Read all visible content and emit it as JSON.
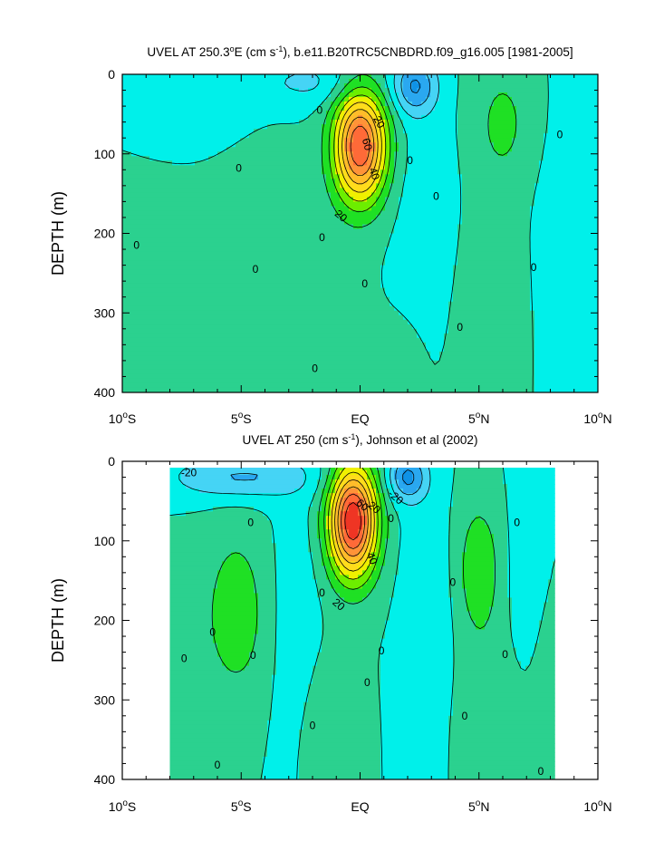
{
  "chart_data": [
    {
      "type": "contour",
      "title_parts": {
        "pre": "UVEL AT 250.3",
        "deg": "o",
        "mid": "E (cm s",
        "exp": "-1",
        "post": "), b.e11.B20TRC5CNBDRD.f09_g16.005 [1981-2005]"
      },
      "ylabel": "DEPTH (m)",
      "xlim": [
        -10,
        10
      ],
      "ylim": [
        400,
        0
      ],
      "yticks": [
        {
          "v": 0,
          "label": "0"
        },
        {
          "v": 100,
          "label": "100"
        },
        {
          "v": 200,
          "label": "200"
        },
        {
          "v": 300,
          "label": "300"
        },
        {
          "v": 400,
          "label": "400"
        }
      ],
      "xticks": [
        {
          "v": -10,
          "num": "10",
          "deg": "o",
          "hem": "S"
        },
        {
          "v": -5,
          "num": "5",
          "deg": "o",
          "hem": "S"
        },
        {
          "v": 0,
          "num": "EQ",
          "deg": "",
          "hem": ""
        },
        {
          "v": 5,
          "num": "5",
          "deg": "o",
          "hem": "N"
        },
        {
          "v": 10,
          "num": "10",
          "deg": "o",
          "hem": "N"
        }
      ],
      "data_xrange": [
        -10,
        10
      ],
      "data_depth_top": 0,
      "data_depth_bottom": 400,
      "contour_interval": 10,
      "features": [
        {
          "kind": "jet",
          "x": 0,
          "depth": 90,
          "peak": 80,
          "hw": 1.1,
          "hd": 70
        },
        {
          "kind": "jet",
          "x": -9,
          "depth": 320,
          "peak": 6,
          "hw": 4,
          "hd": 160
        },
        {
          "kind": "jet",
          "x": -4,
          "depth": 230,
          "peak": 8,
          "hw": 2.0,
          "hd": 130
        },
        {
          "kind": "jet",
          "x": 6,
          "depth": 60,
          "peak": 12,
          "hw": 1.3,
          "hd": 80
        },
        {
          "kind": "jet",
          "x": 5.5,
          "depth": 300,
          "peak": 6,
          "hw": 1.6,
          "hd": 150
        },
        {
          "kind": "jet",
          "x": -1.5,
          "depth": 320,
          "peak": 6,
          "hw": 1.5,
          "hd": 100
        },
        {
          "kind": "jet",
          "x": 1.8,
          "depth": 360,
          "peak": 4,
          "hw": 1.0,
          "hd": 60
        },
        {
          "kind": "jet",
          "x": 2.3,
          "depth": 15,
          "peak": -30,
          "hw": 0.9,
          "hd": 35
        },
        {
          "kind": "jet",
          "x": -2,
          "depth": 10,
          "peak": -12,
          "hw": 2.5,
          "hd": 30
        },
        {
          "kind": "jet",
          "x": 2.8,
          "depth": 180,
          "peak": -6,
          "hw": 1.3,
          "hd": 150
        },
        {
          "kind": "jet",
          "x": 8.5,
          "depth": 250,
          "peak": -5,
          "hw": 1.3,
          "hd": 200
        },
        {
          "kind": "jet",
          "x": -7,
          "depth": 40,
          "peak": -5,
          "hw": 3,
          "hd": 60
        }
      ],
      "labels": [
        {
          "x": 0.8,
          "depth": 60,
          "text": "20",
          "rot": 60
        },
        {
          "x": 0.3,
          "depth": 88,
          "text": "60",
          "rot": 75
        },
        {
          "x": 0.6,
          "depth": 125,
          "text": "40",
          "rot": 70
        },
        {
          "x": -0.8,
          "depth": 178,
          "text": "20",
          "rot": 40
        },
        {
          "x": -1.7,
          "depth": 45,
          "text": "0",
          "rot": 0
        },
        {
          "x": 2.1,
          "depth": 108,
          "text": "0",
          "rot": 0
        },
        {
          "x": 3.2,
          "depth": 153,
          "text": "0",
          "rot": 0
        },
        {
          "x": 4.2,
          "depth": 318,
          "text": "0",
          "rot": 0
        },
        {
          "x": 7.3,
          "depth": 243,
          "text": "0",
          "rot": 0
        },
        {
          "x": 8.4,
          "depth": 76,
          "text": "0",
          "rot": 0
        },
        {
          "x": 0.2,
          "depth": 263,
          "text": "0",
          "rot": 0
        },
        {
          "x": -1.6,
          "depth": 205,
          "text": "0",
          "rot": 0
        },
        {
          "x": -1.9,
          "depth": 370,
          "text": "0",
          "rot": 0
        },
        {
          "x": -5.1,
          "depth": 118,
          "text": "0",
          "rot": 0
        },
        {
          "x": -4.4,
          "depth": 245,
          "text": "0",
          "rot": 0
        },
        {
          "x": -9.4,
          "depth": 215,
          "text": "0",
          "rot": 0
        }
      ]
    },
    {
      "type": "contour",
      "title_parts": {
        "pre": "UVEL AT 250 (cm s",
        "deg": "",
        "mid": "",
        "exp": "-1",
        "post": "), Johnson et al (2002)"
      },
      "ylabel": "DEPTH (m)",
      "xlim": [
        -10,
        10
      ],
      "ylim": [
        400,
        0
      ],
      "yticks": [
        {
          "v": 0,
          "label": "0"
        },
        {
          "v": 100,
          "label": "100"
        },
        {
          "v": 200,
          "label": "200"
        },
        {
          "v": 300,
          "label": "300"
        },
        {
          "v": 400,
          "label": "400"
        }
      ],
      "xticks": [
        {
          "v": -10,
          "num": "10",
          "deg": "o",
          "hem": "S"
        },
        {
          "v": -5,
          "num": "5",
          "deg": "o",
          "hem": "S"
        },
        {
          "v": 0,
          "num": "EQ",
          "deg": "",
          "hem": ""
        },
        {
          "v": 5,
          "num": "5",
          "deg": "o",
          "hem": "N"
        },
        {
          "v": 10,
          "num": "10",
          "deg": "o",
          "hem": "N"
        }
      ],
      "data_xrange": [
        -8,
        8.2
      ],
      "data_depth_top": 8,
      "data_depth_bottom": 400,
      "contour_interval": 10,
      "features": [
        {
          "kind": "jet",
          "x": -0.3,
          "depth": 75,
          "peak": 90,
          "hw": 1.0,
          "hd": 70
        },
        {
          "kind": "jet",
          "x": -5.2,
          "depth": 190,
          "peak": 16,
          "hw": 1.4,
          "hd": 110
        },
        {
          "kind": "jet",
          "x": 5,
          "depth": 135,
          "peak": 18,
          "hw": 0.9,
          "hd": 85
        },
        {
          "kind": "jet",
          "x": 5.5,
          "depth": 320,
          "peak": 7,
          "hw": 1.4,
          "hd": 100
        },
        {
          "kind": "jet",
          "x": -1.5,
          "depth": 330,
          "peak": 5,
          "hw": 1.2,
          "hd": 100
        },
        {
          "kind": "jet",
          "x": -7.5,
          "depth": 300,
          "peak": 5,
          "hw": 1.0,
          "hd": 150
        },
        {
          "kind": "jet",
          "x": 7.7,
          "depth": 280,
          "peak": 4,
          "hw": 0.8,
          "hd": 130
        },
        {
          "kind": "jet",
          "x": 2,
          "depth": 20,
          "peak": -32,
          "hw": 0.8,
          "hd": 30
        },
        {
          "kind": "jet",
          "x": -5,
          "depth": 20,
          "peak": -22,
          "hw": 3,
          "hd": 28
        },
        {
          "kind": "jet",
          "x": 2.8,
          "depth": 200,
          "peak": -8,
          "hw": 1.0,
          "hd": 160
        },
        {
          "kind": "jet",
          "x": -2.8,
          "depth": 200,
          "peak": -6,
          "hw": 1.1,
          "hd": 160
        },
        {
          "kind": "jet",
          "x": 7,
          "depth": 150,
          "peak": -6,
          "hw": 0.8,
          "hd": 150
        }
      ],
      "labels": [
        {
          "x": -7.2,
          "depth": 14,
          "text": "-20",
          "rot": 0
        },
        {
          "x": 1.5,
          "depth": 45,
          "text": "-20",
          "rot": 40
        },
        {
          "x": 0.1,
          "depth": 55,
          "text": "60",
          "rot": 40
        },
        {
          "x": 0.6,
          "depth": 58,
          "text": "20",
          "rot": 40
        },
        {
          "x": 0.5,
          "depth": 122,
          "text": "40",
          "rot": 70
        },
        {
          "x": -0.9,
          "depth": 180,
          "text": "20",
          "rot": 40
        },
        {
          "x": -4.6,
          "depth": 77,
          "text": "0",
          "rot": 0
        },
        {
          "x": -6.2,
          "depth": 215,
          "text": "0",
          "rot": 0
        },
        {
          "x": -7.4,
          "depth": 248,
          "text": "0",
          "rot": 0
        },
        {
          "x": -4.5,
          "depth": 244,
          "text": "0",
          "rot": 0
        },
        {
          "x": -6.0,
          "depth": 382,
          "text": "0",
          "rot": 0
        },
        {
          "x": -1.6,
          "depth": 165,
          "text": "0",
          "rot": 0
        },
        {
          "x": -2.0,
          "depth": 332,
          "text": "0",
          "rot": 0
        },
        {
          "x": 1.3,
          "depth": 72,
          "text": "0",
          "rot": 0
        },
        {
          "x": 0.9,
          "depth": 238,
          "text": "0",
          "rot": 0
        },
        {
          "x": 0.3,
          "depth": 278,
          "text": "0",
          "rot": 0
        },
        {
          "x": 3.9,
          "depth": 152,
          "text": "0",
          "rot": 0
        },
        {
          "x": 4.4,
          "depth": 320,
          "text": "0",
          "rot": 0
        },
        {
          "x": 6.6,
          "depth": 77,
          "text": "0",
          "rot": 0
        },
        {
          "x": 6.1,
          "depth": 243,
          "text": "0",
          "rot": 0
        },
        {
          "x": 7.6,
          "depth": 390,
          "text": "0",
          "rot": 0
        }
      ]
    }
  ],
  "colors": {
    "below_neg30": "#0f92e6",
    "neg30_to_neg20": "#2aa8f0",
    "neg20_to_neg10": "#45d4f5",
    "neg10_to_0": "#00f0ea",
    "zero_to_10": "#2bd18f",
    "ten_to_20": "#1fe024",
    "twenty_to_30": "#6cee00",
    "thirty_to_40": "#f0f000",
    "forty_to_50": "#ffdc1c",
    "fifty_to_60": "#ffbc2a",
    "sixty_to_70": "#ff9338",
    "seventy_to_80": "#ff6a38",
    "eighty_to_90": "#ef3524",
    "above_90": "#c91f1f",
    "contour_line": "#000000"
  }
}
